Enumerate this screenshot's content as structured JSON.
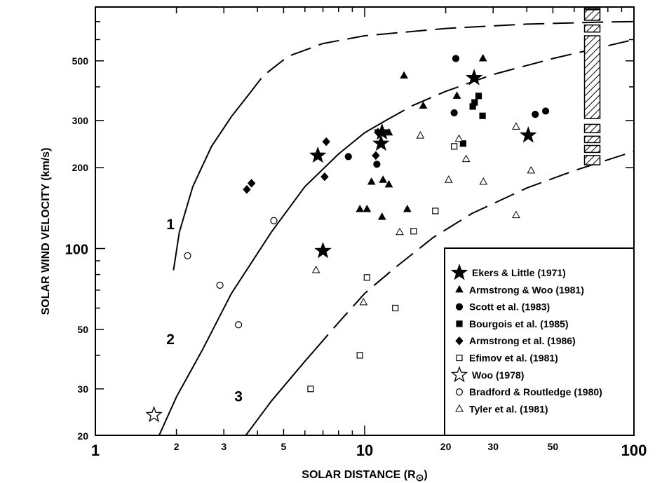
{
  "chart_data": {
    "type": "scatter",
    "title": "",
    "xlabel": "SOLAR DISTANCE",
    "xlabel_sub": "(R",
    "xlabel_sym": "⊙",
    "xlabel_end": ")",
    "ylabel": "SOLAR WIND VELOCITY (km/s)",
    "x_scale": "log",
    "y_scale": "log",
    "xlim": [
      1,
      100
    ],
    "ylim": [
      20,
      900
    ],
    "x_ticks_major": [
      {
        "v": 1,
        "label": "1"
      },
      {
        "v": 10,
        "label": "10"
      },
      {
        "v": 100,
        "label": "100"
      }
    ],
    "x_ticks_minor": [
      {
        "v": 2,
        "label": "2"
      },
      {
        "v": 3,
        "label": "3"
      },
      {
        "v": 5,
        "label": "5"
      },
      {
        "v": 20,
        "label": "20"
      },
      {
        "v": 30,
        "label": "30"
      },
      {
        "v": 50,
        "label": "50"
      }
    ],
    "x_ticks_unlabeled": [
      4,
      6,
      7,
      8,
      9,
      40,
      60,
      70,
      80,
      90
    ],
    "y_ticks": [
      {
        "v": 20,
        "label": "20"
      },
      {
        "v": 30,
        "label": "30"
      },
      {
        "v": 50,
        "label": "50"
      },
      {
        "v": 100,
        "label": "100"
      },
      {
        "v": 200,
        "label": "200"
      },
      {
        "v": 300,
        "label": "300"
      },
      {
        "v": 500,
        "label": "500"
      }
    ],
    "y_ticks_unlabeled": [
      40,
      60,
      70,
      80,
      90,
      400,
      600,
      700,
      800
    ],
    "grid": false,
    "legend_position": "bottom-right",
    "series": [
      {
        "name": "Ekers & Little (1971)",
        "marker": "star-filled",
        "points": [
          [
            6.7,
            222
          ],
          [
            11.5,
            246
          ],
          [
            11.6,
            271
          ],
          [
            25.5,
            432
          ],
          [
            40.5,
            264
          ],
          [
            7.0,
            98
          ]
        ]
      },
      {
        "name": "Armstrong & Woo (1981)",
        "marker": "triangle-filled",
        "points": [
          [
            14,
            440
          ],
          [
            22,
            370
          ],
          [
            27.5,
            510
          ],
          [
            16.5,
            340
          ],
          [
            12.3,
            270
          ],
          [
            10.6,
            177
          ],
          [
            11.7,
            180
          ],
          [
            12.3,
            173
          ],
          [
            9.6,
            140
          ],
          [
            10.2,
            140
          ],
          [
            11.6,
            131
          ],
          [
            14.4,
            140
          ]
        ]
      },
      {
        "name": "Scott et al. (1983)",
        "marker": "circle-filled",
        "points": [
          [
            21.8,
            510
          ],
          [
            21.5,
            320
          ],
          [
            43,
            316
          ],
          [
            47,
            325
          ],
          [
            8.7,
            220
          ],
          [
            11.1,
            206
          ]
        ]
      },
      {
        "name": "Bourgois et al. (1985)",
        "marker": "square-filled",
        "points": [
          [
            26.5,
            370
          ],
          [
            25.6,
            350
          ],
          [
            25.2,
            338
          ],
          [
            27.4,
            312
          ],
          [
            23.2,
            246
          ]
        ]
      },
      {
        "name": "Armstrong et al. (1986)",
        "marker": "diamond-filled",
        "points": [
          [
            7.2,
            250
          ],
          [
            11.2,
            271
          ],
          [
            11.0,
            222
          ],
          [
            7.1,
            185
          ],
          [
            3.8,
            175
          ],
          [
            3.65,
            166
          ]
        ]
      },
      {
        "name": "Efimov et al. (1981)",
        "marker": "square-open",
        "points": [
          [
            21.5,
            240
          ],
          [
            18.3,
            138
          ],
          [
            15.2,
            116
          ],
          [
            10.2,
            78
          ],
          [
            13.0,
            60
          ],
          [
            9.6,
            40
          ],
          [
            6.3,
            30
          ]
        ]
      },
      {
        "name": "Woo (1978)",
        "marker": "star-open",
        "points": [
          [
            1.65,
            24
          ]
        ]
      },
      {
        "name": "Bradford & Routledge (1980)",
        "marker": "circle-open",
        "points": [
          [
            2.2,
            94
          ],
          [
            2.9,
            73
          ],
          [
            3.4,
            52
          ],
          [
            4.6,
            127
          ]
        ]
      },
      {
        "name": "Tyler et al. (1981)",
        "marker": "triangle-open",
        "points": [
          [
            16.1,
            263
          ],
          [
            22.4,
            256
          ],
          [
            20.5,
            180
          ],
          [
            23.8,
            215
          ],
          [
            27.6,
            177
          ],
          [
            36.5,
            284
          ],
          [
            41.5,
            195
          ],
          [
            36.5,
            133
          ],
          [
            13.5,
            115
          ],
          [
            6.6,
            83
          ],
          [
            9.9,
            63
          ]
        ]
      }
    ],
    "curves": [
      {
        "label": "1",
        "style": "solid-then-dashed",
        "points": [
          [
            1.95,
            83
          ],
          [
            2.05,
            115
          ],
          [
            2.3,
            170
          ],
          [
            2.7,
            240
          ],
          [
            3.2,
            310
          ],
          [
            3.6,
            360
          ],
          [
            4.2,
            440
          ],
          [
            5.2,
            520
          ],
          [
            7,
            580
          ],
          [
            10,
            620
          ],
          [
            20,
            660
          ],
          [
            40,
            685
          ],
          [
            80,
            698
          ],
          [
            100,
            700
          ]
        ],
        "solid_until": 3.7
      },
      {
        "label": "2",
        "style": "solid-then-dashed",
        "points": [
          [
            1.72,
            20
          ],
          [
            2.0,
            28
          ],
          [
            2.5,
            42
          ],
          [
            3.2,
            68
          ],
          [
            4.5,
            115
          ],
          [
            6,
            170
          ],
          [
            8,
            225
          ],
          [
            10,
            270
          ],
          [
            12,
            300
          ],
          [
            15,
            340
          ],
          [
            20,
            385
          ],
          [
            30,
            445
          ],
          [
            50,
            510
          ],
          [
            100,
            600
          ]
        ],
        "solid_until": 12
      },
      {
        "label": "3",
        "style": "solid-then-dashed",
        "points": [
          [
            3.6,
            20
          ],
          [
            4.5,
            27
          ],
          [
            6,
            38
          ],
          [
            8,
            53
          ],
          [
            10,
            68
          ],
          [
            13,
            85
          ],
          [
            18,
            110
          ],
          [
            25,
            135
          ],
          [
            40,
            168
          ],
          [
            60,
            195
          ],
          [
            100,
            230
          ]
        ],
        "solid_until": 6.5
      }
    ],
    "shaded_bar": {
      "x": 70,
      "segments": [
        [
          795,
          905
        ],
        [
          708,
          775
        ],
        [
          640,
          680
        ],
        [
          305,
          620
        ],
        [
          270,
          290
        ],
        [
          248,
          262
        ],
        [
          228,
          242
        ],
        [
          205,
          222
        ]
      ]
    }
  }
}
